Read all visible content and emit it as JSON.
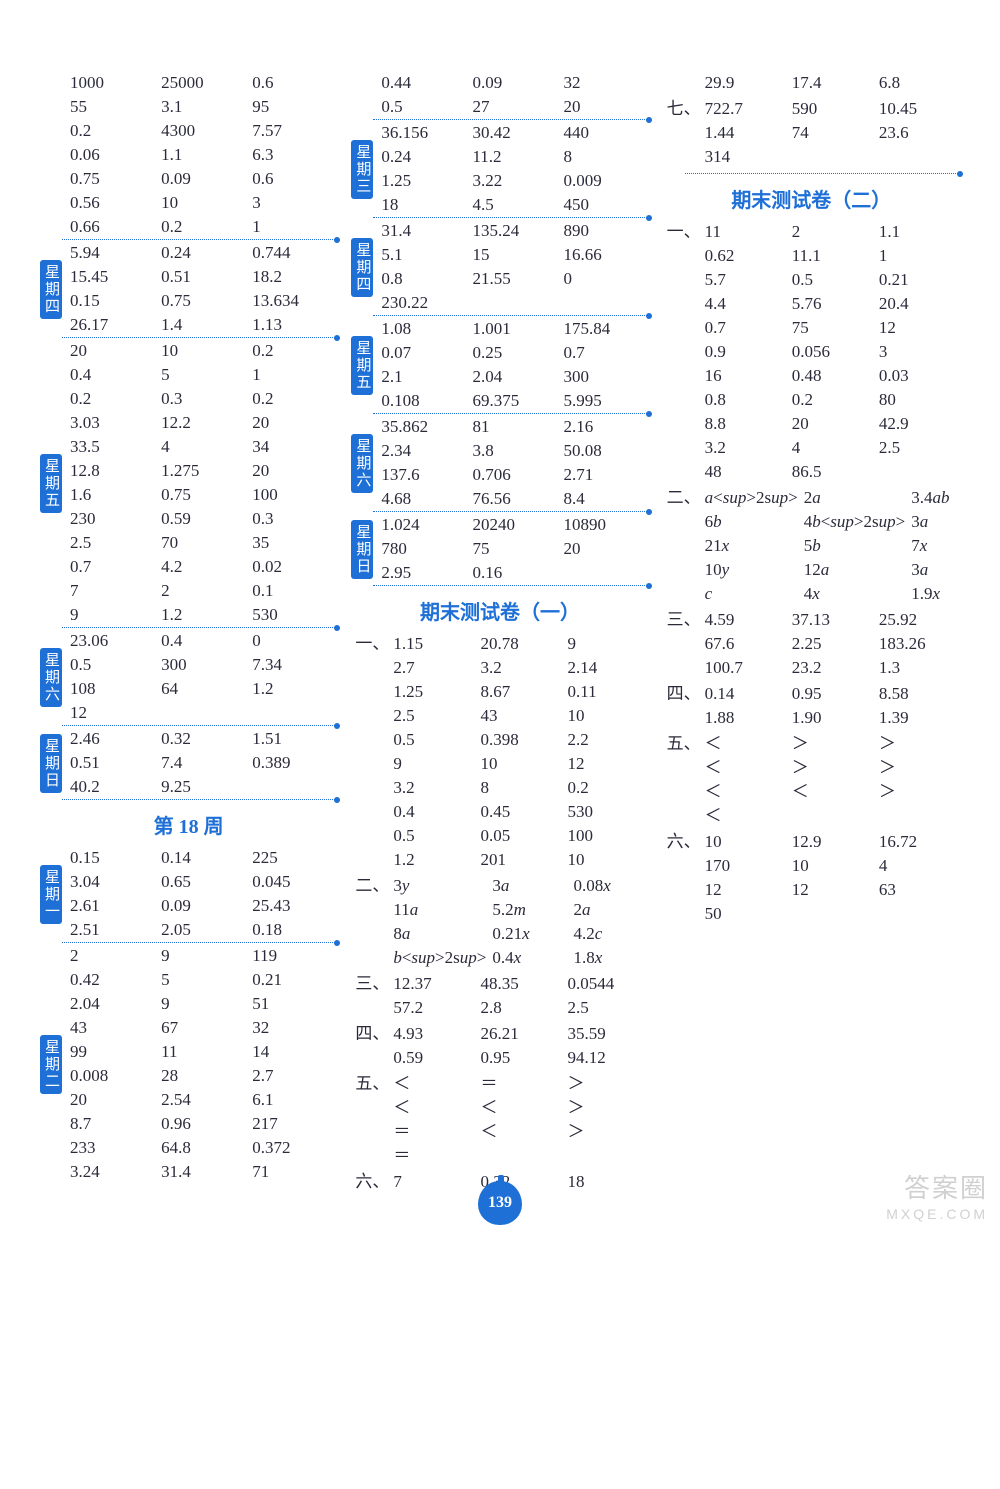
{
  "page_number": "139",
  "watermark_top": "答案圈",
  "watermark_bottom": "MXQE.COM",
  "headings": {
    "week18": "第 18 周",
    "final1": "期末测试卷（一）",
    "final2": "期末测试卷（二）"
  },
  "colors": {
    "accent": "#1e6fd6",
    "text": "#2a2a3a",
    "background": "#ffffff"
  },
  "left": {
    "blocks": [
      {
        "tag": null,
        "rows": [
          [
            "1000",
            "25000",
            "0.6"
          ],
          [
            "55",
            "3.1",
            "95"
          ],
          [
            "0.2",
            "4300",
            "7.57"
          ],
          [
            "0.06",
            "1.1",
            "6.3"
          ],
          [
            "0.75",
            "0.09",
            "0.6"
          ],
          [
            "0.56",
            "10",
            "3"
          ],
          [
            "0.66",
            "0.2",
            "1"
          ]
        ]
      },
      {
        "tag": "星期四",
        "rows": [
          [
            "5.94",
            "0.24",
            "0.744"
          ],
          [
            "15.45",
            "0.51",
            "18.2"
          ],
          [
            "0.15",
            "0.75",
            "13.634"
          ],
          [
            "26.17",
            "1.4",
            "1.13"
          ]
        ]
      },
      {
        "tag": "星期五",
        "rows": [
          [
            "20",
            "10",
            "0.2"
          ],
          [
            "0.4",
            "5",
            "1"
          ],
          [
            "0.2",
            "0.3",
            "0.2"
          ],
          [
            "3.03",
            "12.2",
            "20"
          ],
          [
            "33.5",
            "4",
            "34"
          ],
          [
            "12.8",
            "1.275",
            "20"
          ],
          [
            "1.6",
            "0.75",
            "100"
          ],
          [
            "230",
            "0.59",
            "0.3"
          ],
          [
            "2.5",
            "70",
            "35"
          ],
          [
            "0.7",
            "4.2",
            "0.02"
          ],
          [
            "7",
            "2",
            "0.1"
          ],
          [
            "9",
            "1.2",
            "530"
          ]
        ]
      },
      {
        "tag": "星期六",
        "rows": [
          [
            "23.06",
            "0.4",
            "0"
          ],
          [
            "0.5",
            "300",
            "7.34"
          ],
          [
            "108",
            "64",
            "1.2"
          ],
          [
            "12",
            "",
            ""
          ]
        ]
      },
      {
        "tag": "星期日",
        "rows": [
          [
            "2.46",
            "0.32",
            "1.51"
          ],
          [
            "0.51",
            "7.4",
            "0.389"
          ],
          [
            "40.2",
            "9.25",
            ""
          ]
        ]
      }
    ],
    "week18": [
      {
        "tag": "星期一",
        "rows": [
          [
            "0.15",
            "0.14",
            "225"
          ],
          [
            "3.04",
            "0.65",
            "0.045"
          ],
          [
            "2.61",
            "0.09",
            "25.43"
          ],
          [
            "2.51",
            "2.05",
            "0.18"
          ]
        ]
      },
      {
        "tag": "星期二",
        "rows": [
          [
            "2",
            "9",
            "119"
          ],
          [
            "0.42",
            "5",
            "0.21"
          ],
          [
            "2.04",
            "9",
            "51"
          ],
          [
            "43",
            "67",
            "32"
          ],
          [
            "99",
            "11",
            "14"
          ],
          [
            "0.008",
            "28",
            "2.7"
          ],
          [
            "20",
            "2.54",
            "6.1"
          ],
          [
            "8.7",
            "0.96",
            "217"
          ],
          [
            "233",
            "64.8",
            "0.372"
          ],
          [
            "3.24",
            "31.4",
            "71"
          ]
        ],
        "no_sep": true
      }
    ]
  },
  "mid": {
    "blocks": [
      {
        "tag": null,
        "rows": [
          [
            "0.44",
            "0.09",
            "32"
          ],
          [
            "0.5",
            "27",
            "20"
          ]
        ]
      },
      {
        "tag": "星期三",
        "rows": [
          [
            "36.156",
            "30.42",
            "440"
          ],
          [
            "0.24",
            "11.2",
            "8"
          ],
          [
            "1.25",
            "3.22",
            "0.009"
          ],
          [
            "18",
            "4.5",
            "450"
          ]
        ]
      },
      {
        "tag": "星期四",
        "rows": [
          [
            "31.4",
            "135.24",
            "890"
          ],
          [
            "5.1",
            "15",
            "16.66"
          ],
          [
            "0.8",
            "21.55",
            "0"
          ],
          [
            "230.22",
            "",
            ""
          ]
        ]
      },
      {
        "tag": "星期五",
        "rows": [
          [
            "1.08",
            "1.001",
            "175.84"
          ],
          [
            "0.07",
            "0.25",
            "0.7"
          ],
          [
            "2.1",
            "2.04",
            "300"
          ],
          [
            "0.108",
            "69.375",
            "5.995"
          ]
        ]
      },
      {
        "tag": "星期六",
        "rows": [
          [
            "35.862",
            "81",
            "2.16"
          ],
          [
            "2.34",
            "3.8",
            "50.08"
          ],
          [
            "137.6",
            "0.706",
            "2.71"
          ],
          [
            "4.68",
            "76.56",
            "8.4"
          ]
        ]
      },
      {
        "tag": "星期日",
        "rows": [
          [
            "1.024",
            "20240",
            "10890"
          ],
          [
            "780",
            "75",
            "20"
          ],
          [
            "2.95",
            "0.16",
            ""
          ]
        ]
      }
    ],
    "final1": [
      {
        "label": "一、",
        "rows": [
          [
            "1.15",
            "20.78",
            "9"
          ],
          [
            "2.7",
            "3.2",
            "2.14"
          ],
          [
            "1.25",
            "8.67",
            "0.11"
          ],
          [
            "2.5",
            "43",
            "10"
          ],
          [
            "0.5",
            "0.398",
            "2.2"
          ],
          [
            "9",
            "10",
            "12"
          ],
          [
            "3.2",
            "8",
            "0.2"
          ],
          [
            "0.4",
            "0.45",
            "530"
          ],
          [
            "0.5",
            "0.05",
            "100"
          ],
          [
            "1.2",
            "201",
            "10"
          ]
        ]
      },
      {
        "label": "二、",
        "rows": [
          [
            "3y",
            "3a",
            "0.08x"
          ],
          [
            "11a",
            "5.2m",
            "2a"
          ],
          [
            "8a",
            "0.21x",
            "4.2c"
          ],
          [
            "b²",
            "0.4x",
            "1.8x"
          ]
        ]
      },
      {
        "label": "三、",
        "rows": [
          [
            "12.37",
            "48.35",
            "0.0544"
          ],
          [
            "57.2",
            "2.8",
            "2.5"
          ]
        ]
      },
      {
        "label": "四、",
        "rows": [
          [
            "4.93",
            "26.21",
            "35.59"
          ],
          [
            "0.59",
            "0.95",
            "94.12"
          ]
        ]
      },
      {
        "label": "五、",
        "rows": [
          [
            "＜",
            "＝",
            "＞"
          ],
          [
            "＜",
            "＜",
            "＞"
          ],
          [
            "＝",
            "＜",
            "＞"
          ],
          [
            "＝",
            "",
            ""
          ]
        ]
      },
      {
        "label": "六、",
        "rows": [
          [
            "7",
            "0.32",
            "18"
          ]
        ]
      }
    ]
  },
  "right": {
    "top": [
      {
        "label": "",
        "rows": [
          [
            "29.9",
            "17.4",
            "6.8"
          ]
        ]
      },
      {
        "label": "七、",
        "rows": [
          [
            "722.7",
            "590",
            "10.45"
          ],
          [
            "1.44",
            "74",
            "23.6"
          ],
          [
            "314",
            "",
            ""
          ]
        ]
      }
    ],
    "final2": [
      {
        "label": "一、",
        "rows": [
          [
            "11",
            "2",
            "1.1"
          ],
          [
            "0.62",
            "11.1",
            "1"
          ],
          [
            "5.7",
            "0.5",
            "0.21"
          ],
          [
            "4.4",
            "5.76",
            "20.4"
          ],
          [
            "0.7",
            "75",
            "12"
          ],
          [
            "0.9",
            "0.056",
            "3"
          ],
          [
            "16",
            "0.48",
            "0.03"
          ],
          [
            "0.8",
            "0.2",
            "80"
          ],
          [
            "8.8",
            "20",
            "42.9"
          ],
          [
            "3.2",
            "4",
            "2.5"
          ],
          [
            "48",
            "86.5",
            ""
          ]
        ]
      },
      {
        "label": "二、",
        "rows": [
          [
            "a²",
            "2a",
            "3.4ab"
          ],
          [
            "6b",
            "4b²",
            "3a"
          ],
          [
            "21x",
            "5b",
            "7x"
          ],
          [
            "10y",
            "12a",
            "3a"
          ],
          [
            "c",
            "4x",
            "1.9x"
          ]
        ]
      },
      {
        "label": "三、",
        "rows": [
          [
            "4.59",
            "37.13",
            "25.92"
          ],
          [
            "67.6",
            "2.25",
            "183.26"
          ],
          [
            "100.7",
            "23.2",
            "1.3"
          ]
        ]
      },
      {
        "label": "四、",
        "rows": [
          [
            "0.14",
            "0.95",
            "8.58"
          ],
          [
            "1.88",
            "1.90",
            "1.39"
          ]
        ]
      },
      {
        "label": "五、",
        "rows": [
          [
            "＜",
            "＞",
            "＞"
          ],
          [
            "＜",
            "＞",
            "＞"
          ],
          [
            "＜",
            "＜",
            "＞"
          ],
          [
            "＜",
            "",
            ""
          ]
        ]
      },
      {
        "label": "六、",
        "rows": [
          [
            "10",
            "12.9",
            "16.72"
          ],
          [
            "170",
            "10",
            "4"
          ],
          [
            "12",
            "12",
            "63"
          ],
          [
            "50",
            "",
            ""
          ]
        ]
      }
    ]
  }
}
